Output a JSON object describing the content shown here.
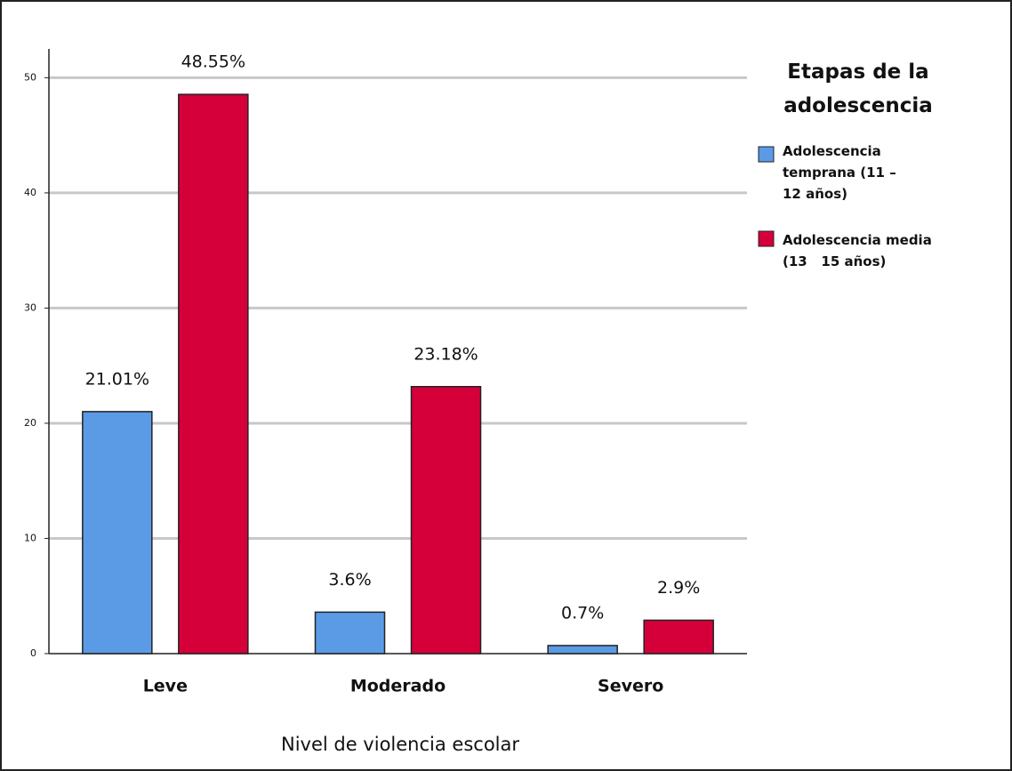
{
  "chart_data": {
    "type": "bar",
    "x_label": "Nivel de violencia escolar",
    "legend_title": "Etapas de la adolescencia",
    "legend_position": "right",
    "categories": [
      "Leve",
      "Moderado",
      "Severo"
    ],
    "series": [
      {
        "name": "Adolescencia temprana (11 – 12 años)",
        "color": "#5b9be6",
        "values": [
          21.01,
          3.6,
          0.7
        ],
        "value_labels": [
          "21.01%",
          "3.6%",
          "0.7%"
        ]
      },
      {
        "name": "Adolescencia media (13   15 años)",
        "color": "#d5003a",
        "values": [
          48.55,
          23.18,
          2.9
        ],
        "value_labels": [
          "48.55%",
          "23.18%",
          "2.9%"
        ]
      }
    ],
    "ylim": [
      0,
      52.5
    ],
    "yticks": [
      0,
      10,
      20,
      30,
      40,
      50
    ],
    "grid": true
  }
}
